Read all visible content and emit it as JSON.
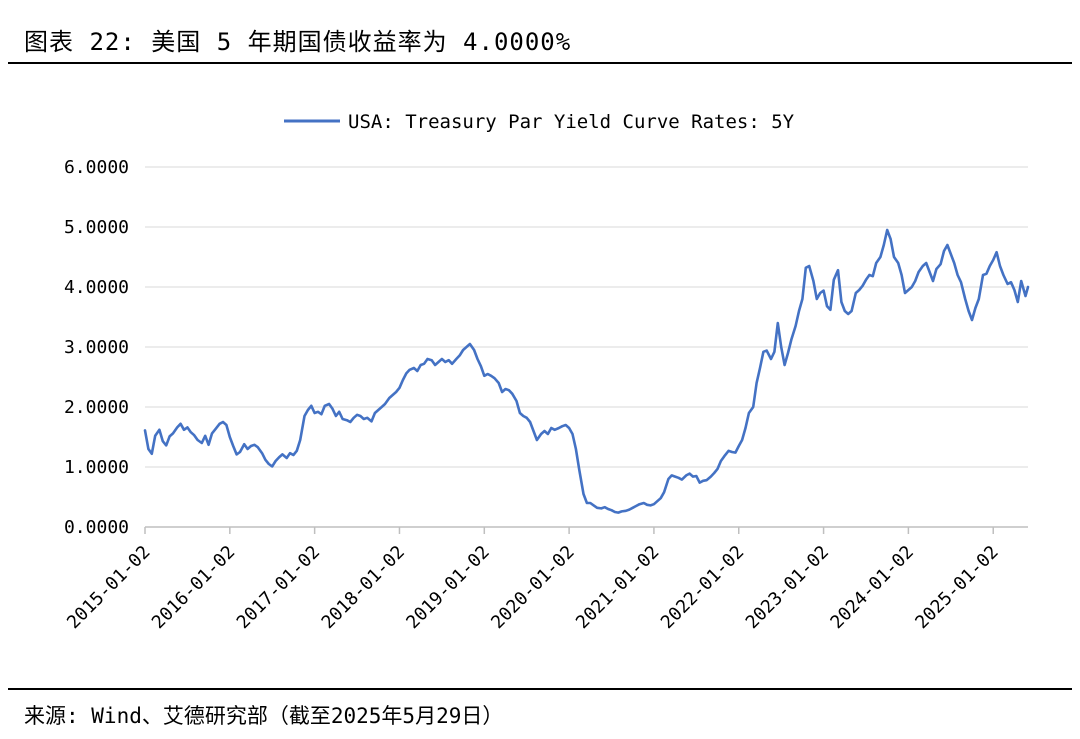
{
  "header": {
    "title": "图表 22: 美国 5 年期国债收益率为 4.0000%"
  },
  "footer": {
    "source": "来源: Wind、艾德研究部（截至2025年5月29日）"
  },
  "colors": {
    "series": "#4472C4",
    "grid": "#D9D9D9",
    "axis": "#BFBFBF"
  },
  "chart_data": {
    "type": "line",
    "title": "",
    "legend": {
      "position": "top-center",
      "entries": [
        "USA: Treasury Par Yield Curve Rates: 5Y"
      ]
    },
    "xlabel": "",
    "ylabel": "",
    "ylim": [
      0,
      6
    ],
    "grid": true,
    "y_ticks": [
      "0.0000",
      "1.0000",
      "2.0000",
      "3.0000",
      "4.0000",
      "5.0000",
      "6.0000"
    ],
    "x_ticks": [
      "2015-01-02",
      "2016-01-02",
      "2017-01-02",
      "2018-01-02",
      "2019-01-02",
      "2020-01-02",
      "2021-01-02",
      "2022-01-02",
      "2023-01-02",
      "2024-01-02",
      "2025-01-02"
    ],
    "x_range": [
      2015.0,
      2025.41
    ],
    "series": [
      {
        "name": "USA: Treasury Par Yield Curve Rates: 5Y",
        "x": [
          2015.0,
          2015.04,
          2015.08,
          2015.12,
          2015.17,
          2015.21,
          2015.25,
          2015.29,
          2015.33,
          2015.38,
          2015.42,
          2015.46,
          2015.5,
          2015.54,
          2015.58,
          2015.62,
          2015.67,
          2015.71,
          2015.75,
          2015.79,
          2015.83,
          2015.88,
          2015.92,
          2015.96,
          2016.0,
          2016.04,
          2016.08,
          2016.12,
          2016.17,
          2016.21,
          2016.25,
          2016.29,
          2016.33,
          2016.38,
          2016.42,
          2016.46,
          2016.5,
          2016.54,
          2016.58,
          2016.62,
          2016.67,
          2016.71,
          2016.75,
          2016.79,
          2016.83,
          2016.88,
          2016.92,
          2016.96,
          2017.0,
          2017.04,
          2017.08,
          2017.12,
          2017.17,
          2017.21,
          2017.25,
          2017.29,
          2017.33,
          2017.38,
          2017.42,
          2017.46,
          2017.5,
          2017.54,
          2017.58,
          2017.62,
          2017.67,
          2017.71,
          2017.75,
          2017.79,
          2017.83,
          2017.88,
          2017.92,
          2017.96,
          2018.0,
          2018.04,
          2018.08,
          2018.12,
          2018.17,
          2018.21,
          2018.25,
          2018.29,
          2018.33,
          2018.38,
          2018.42,
          2018.46,
          2018.5,
          2018.54,
          2018.58,
          2018.62,
          2018.67,
          2018.71,
          2018.75,
          2018.79,
          2018.83,
          2018.88,
          2018.92,
          2018.96,
          2019.0,
          2019.04,
          2019.08,
          2019.12,
          2019.17,
          2019.21,
          2019.25,
          2019.29,
          2019.33,
          2019.38,
          2019.42,
          2019.46,
          2019.5,
          2019.54,
          2019.58,
          2019.62,
          2019.67,
          2019.71,
          2019.75,
          2019.79,
          2019.83,
          2019.88,
          2019.92,
          2019.96,
          2020.0,
          2020.04,
          2020.08,
          2020.12,
          2020.17,
          2020.21,
          2020.25,
          2020.29,
          2020.33,
          2020.38,
          2020.42,
          2020.46,
          2020.5,
          2020.54,
          2020.58,
          2020.62,
          2020.67,
          2020.71,
          2020.75,
          2020.79,
          2020.83,
          2020.88,
          2020.92,
          2020.96,
          2021.0,
          2021.04,
          2021.08,
          2021.12,
          2021.17,
          2021.21,
          2021.25,
          2021.29,
          2021.33,
          2021.38,
          2021.42,
          2021.46,
          2021.5,
          2021.54,
          2021.58,
          2021.62,
          2021.67,
          2021.71,
          2021.75,
          2021.79,
          2021.83,
          2021.88,
          2021.92,
          2021.96,
          2022.0,
          2022.04,
          2022.08,
          2022.12,
          2022.17,
          2022.21,
          2022.25,
          2022.29,
          2022.33,
          2022.38,
          2022.42,
          2022.46,
          2022.5,
          2022.54,
          2022.58,
          2022.62,
          2022.67,
          2022.71,
          2022.75,
          2022.79,
          2022.83,
          2022.88,
          2022.92,
          2022.96,
          2023.0,
          2023.04,
          2023.08,
          2023.12,
          2023.17,
          2023.21,
          2023.25,
          2023.29,
          2023.33,
          2023.38,
          2023.42,
          2023.46,
          2023.5,
          2023.54,
          2023.58,
          2023.62,
          2023.67,
          2023.71,
          2023.75,
          2023.79,
          2023.83,
          2023.88,
          2023.92,
          2023.96,
          2024.0,
          2024.04,
          2024.08,
          2024.12,
          2024.17,
          2024.21,
          2024.25,
          2024.29,
          2024.33,
          2024.38,
          2024.42,
          2024.46,
          2024.5,
          2024.54,
          2024.58,
          2024.62,
          2024.67,
          2024.71,
          2024.75,
          2024.79,
          2024.83,
          2024.88,
          2024.92,
          2024.96,
          2025.0,
          2025.04,
          2025.08,
          2025.12,
          2025.17,
          2025.21,
          2025.25,
          2025.29,
          2025.33,
          2025.38,
          2025.41
        ],
        "values": [
          1.61,
          1.3,
          1.22,
          1.52,
          1.62,
          1.43,
          1.36,
          1.51,
          1.56,
          1.66,
          1.72,
          1.62,
          1.66,
          1.58,
          1.53,
          1.45,
          1.4,
          1.52,
          1.37,
          1.56,
          1.63,
          1.72,
          1.75,
          1.7,
          1.5,
          1.35,
          1.21,
          1.25,
          1.38,
          1.3,
          1.35,
          1.37,
          1.33,
          1.23,
          1.12,
          1.05,
          1.01,
          1.1,
          1.16,
          1.21,
          1.15,
          1.23,
          1.2,
          1.27,
          1.45,
          1.85,
          1.95,
          2.02,
          1.9,
          1.92,
          1.88,
          2.02,
          2.05,
          1.97,
          1.85,
          1.92,
          1.8,
          1.78,
          1.75,
          1.82,
          1.87,
          1.85,
          1.8,
          1.82,
          1.76,
          1.9,
          1.95,
          2.0,
          2.05,
          2.15,
          2.2,
          2.25,
          2.32,
          2.45,
          2.56,
          2.62,
          2.65,
          2.6,
          2.7,
          2.72,
          2.8,
          2.78,
          2.7,
          2.75,
          2.8,
          2.75,
          2.78,
          2.72,
          2.8,
          2.86,
          2.95,
          3.0,
          3.05,
          2.95,
          2.8,
          2.68,
          2.52,
          2.55,
          2.52,
          2.48,
          2.4,
          2.25,
          2.3,
          2.28,
          2.22,
          2.1,
          1.9,
          1.85,
          1.82,
          1.75,
          1.6,
          1.45,
          1.55,
          1.6,
          1.55,
          1.65,
          1.62,
          1.65,
          1.68,
          1.7,
          1.65,
          1.55,
          1.3,
          0.95,
          0.55,
          0.4,
          0.4,
          0.36,
          0.32,
          0.31,
          0.33,
          0.3,
          0.28,
          0.25,
          0.24,
          0.26,
          0.27,
          0.29,
          0.32,
          0.35,
          0.38,
          0.4,
          0.37,
          0.36,
          0.38,
          0.43,
          0.48,
          0.58,
          0.8,
          0.86,
          0.84,
          0.82,
          0.79,
          0.86,
          0.89,
          0.84,
          0.85,
          0.74,
          0.77,
          0.78,
          0.84,
          0.9,
          0.97,
          1.1,
          1.18,
          1.27,
          1.25,
          1.24,
          1.35,
          1.45,
          1.65,
          1.9,
          2.0,
          2.4,
          2.65,
          2.92,
          2.94,
          2.8,
          2.92,
          3.4,
          3.0,
          2.7,
          2.9,
          3.12,
          3.35,
          3.6,
          3.8,
          4.32,
          4.35,
          4.1,
          3.8,
          3.9,
          3.94,
          3.68,
          3.62,
          4.12,
          4.28,
          3.75,
          3.6,
          3.55,
          3.6,
          3.9,
          3.95,
          4.02,
          4.12,
          4.2,
          4.18,
          4.4,
          4.5,
          4.7,
          4.95,
          4.8,
          4.5,
          4.4,
          4.2,
          3.9,
          3.95,
          4.0,
          4.1,
          4.25,
          4.35,
          4.4,
          4.25,
          4.1,
          4.3,
          4.38,
          4.6,
          4.7,
          4.55,
          4.4,
          4.2,
          4.08,
          3.8,
          3.6,
          3.45,
          3.65,
          3.8,
          4.2,
          4.22,
          4.35,
          4.45,
          4.58,
          4.35,
          4.2,
          4.05,
          4.08,
          3.95,
          3.75,
          4.1,
          3.85,
          4.0
        ]
      }
    ]
  }
}
